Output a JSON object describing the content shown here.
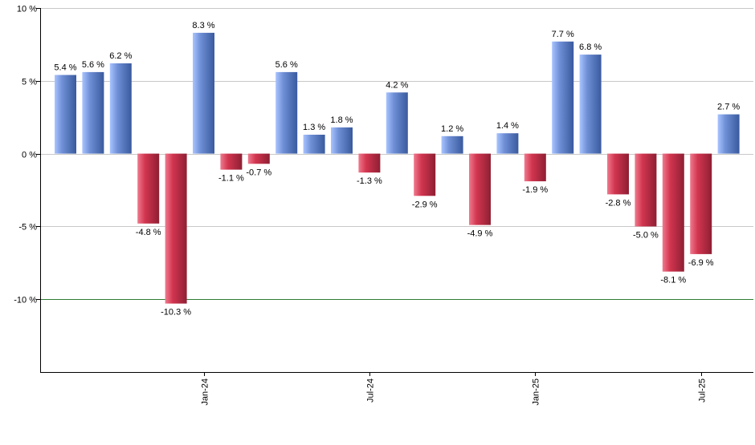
{
  "chart_data": {
    "type": "bar",
    "title": "",
    "xlabel": "",
    "ylabel": "",
    "ylim": [
      -15,
      10
    ],
    "yticks": [
      10,
      5,
      0,
      -5,
      -10
    ],
    "ytick_labels": [
      "10 %",
      "5 %",
      "0 %",
      "-5 %",
      "-10 %"
    ],
    "reference_line": -10,
    "values": [
      5.4,
      5.6,
      6.2,
      -4.8,
      -10.3,
      8.3,
      -1.1,
      -0.7,
      5.6,
      1.3,
      1.8,
      -1.3,
      4.2,
      -2.9,
      1.2,
      -4.9,
      1.4,
      -1.9,
      7.7,
      6.8,
      -2.8,
      -5.0,
      -8.1,
      -6.9,
      2.7
    ],
    "value_labels": [
      "5.4 %",
      "5.6 %",
      "6.2 %",
      "-4.8 %",
      "-10.3 %",
      "8.3 %",
      "-1.1 %",
      "-0.7 %",
      "5.6 %",
      "1.3 %",
      "1.8 %",
      "-1.3 %",
      "4.2 %",
      "-2.9 %",
      "1.2 %",
      "-4.9 %",
      "1.4 %",
      "-1.9 %",
      "7.7 %",
      "6.8 %",
      "-2.8 %",
      "-5.0 %",
      "-8.1 %",
      "-6.9 %",
      "2.7 %"
    ],
    "xticks": [
      {
        "index": 5,
        "label": "Jan-24"
      },
      {
        "index": 11,
        "label": "Jul-24"
      },
      {
        "index": 17,
        "label": "Jan-25"
      },
      {
        "index": 23,
        "label": "Jul-25"
      }
    ],
    "colors": {
      "positive_light": "#a9c4ff",
      "positive_mid": "#6f8fd6",
      "positive_dark": "#3a5a9e",
      "negative_light": "#f07a8e",
      "negative_mid": "#d2354f",
      "negative_dark": "#8e1f33",
      "gridline": "#c8c8c8",
      "axis": "#000000",
      "reference_line": "#2e7d32"
    }
  }
}
